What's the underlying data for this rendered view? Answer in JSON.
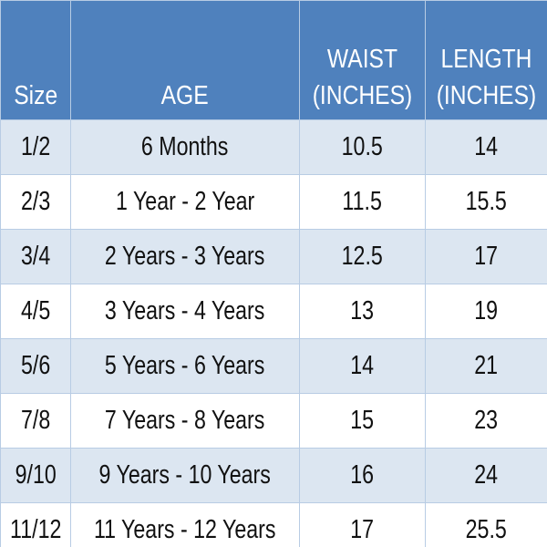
{
  "table": {
    "header": [
      "Size",
      "AGE",
      "WAIST (INCHES)",
      "LENGTH (INCHES)"
    ],
    "rows": [
      [
        "1/2",
        "6 Months",
        10.5,
        14
      ],
      [
        "2/3",
        "1 Year - 2 Year",
        11.5,
        15.5
      ],
      [
        "3/4",
        "2 Years - 3 Years",
        12.5,
        17
      ],
      [
        "4/5",
        "3 Years - 4 Years",
        13,
        19
      ],
      [
        "5/6",
        "5 Years - 6 Years",
        14,
        21
      ],
      [
        "7/8",
        "7 Years - 8 Years",
        15,
        23
      ],
      [
        "9/10",
        "9 Years - 10 Years",
        16,
        24
      ],
      [
        "11/12",
        "11 Years - 12 Years",
        17,
        25.5
      ]
    ]
  }
}
